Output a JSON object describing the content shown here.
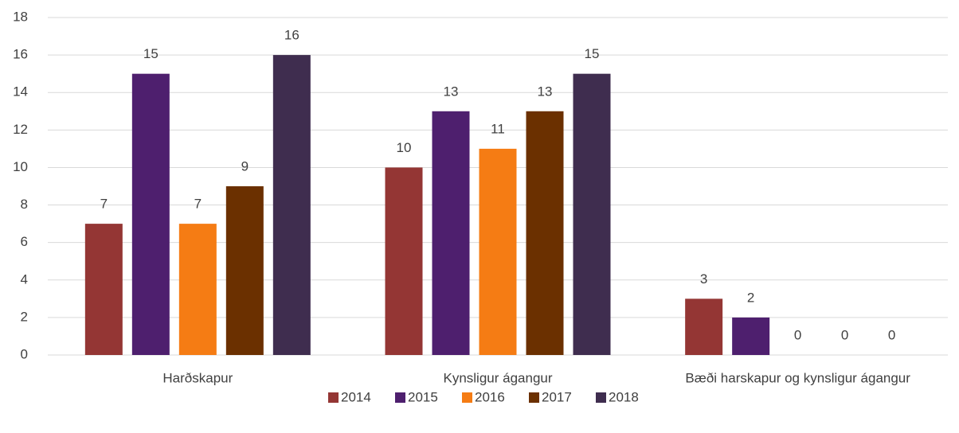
{
  "chart_data": {
    "type": "bar",
    "categories": [
      "Harðskapur",
      "Kynsligur ágangur",
      "Bæði harskapur og kynsligur ágangur"
    ],
    "series": [
      {
        "name": "2014",
        "color": "#943634",
        "values": [
          7,
          10,
          3
        ]
      },
      {
        "name": "2015",
        "color": "#4e1f6e",
        "values": [
          15,
          13,
          2
        ]
      },
      {
        "name": "2016",
        "color": "#f57c14",
        "values": [
          7,
          11,
          0
        ]
      },
      {
        "name": "2017",
        "color": "#6b3000",
        "values": [
          9,
          13,
          0
        ]
      },
      {
        "name": "2018",
        "color": "#3f2d4f",
        "values": [
          16,
          15,
          0
        ]
      }
    ],
    "ylim": [
      0,
      18
    ],
    "yticks": [
      0,
      2,
      4,
      6,
      8,
      10,
      12,
      14,
      16,
      18
    ],
    "grid": true,
    "legend": "bottom"
  }
}
